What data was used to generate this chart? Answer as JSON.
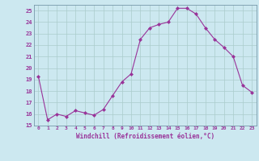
{
  "x": [
    0,
    1,
    2,
    3,
    4,
    5,
    6,
    7,
    8,
    9,
    10,
    11,
    12,
    13,
    14,
    15,
    16,
    17,
    18,
    19,
    20,
    21,
    22,
    23
  ],
  "y": [
    19.3,
    15.5,
    16.0,
    15.8,
    16.3,
    16.1,
    15.9,
    16.4,
    17.6,
    18.8,
    19.5,
    22.5,
    23.5,
    23.8,
    24.0,
    25.2,
    25.2,
    24.7,
    23.5,
    22.5,
    21.8,
    21.0,
    18.5,
    17.9
  ],
  "xlabel": "Windchill (Refroidissement éolien,°C)",
  "ylim": [
    15,
    25.5
  ],
  "xlim": [
    -0.5,
    23.5
  ],
  "yticks": [
    15,
    16,
    17,
    18,
    19,
    20,
    21,
    22,
    23,
    24,
    25
  ],
  "xticks": [
    0,
    1,
    2,
    3,
    4,
    5,
    6,
    7,
    8,
    9,
    10,
    11,
    12,
    13,
    14,
    15,
    16,
    17,
    18,
    19,
    20,
    21,
    22,
    23
  ],
  "line_color": "#993399",
  "marker_color": "#993399",
  "bg_color": "#cce8f0",
  "grid_color": "#aacccc",
  "label_color": "#993399"
}
